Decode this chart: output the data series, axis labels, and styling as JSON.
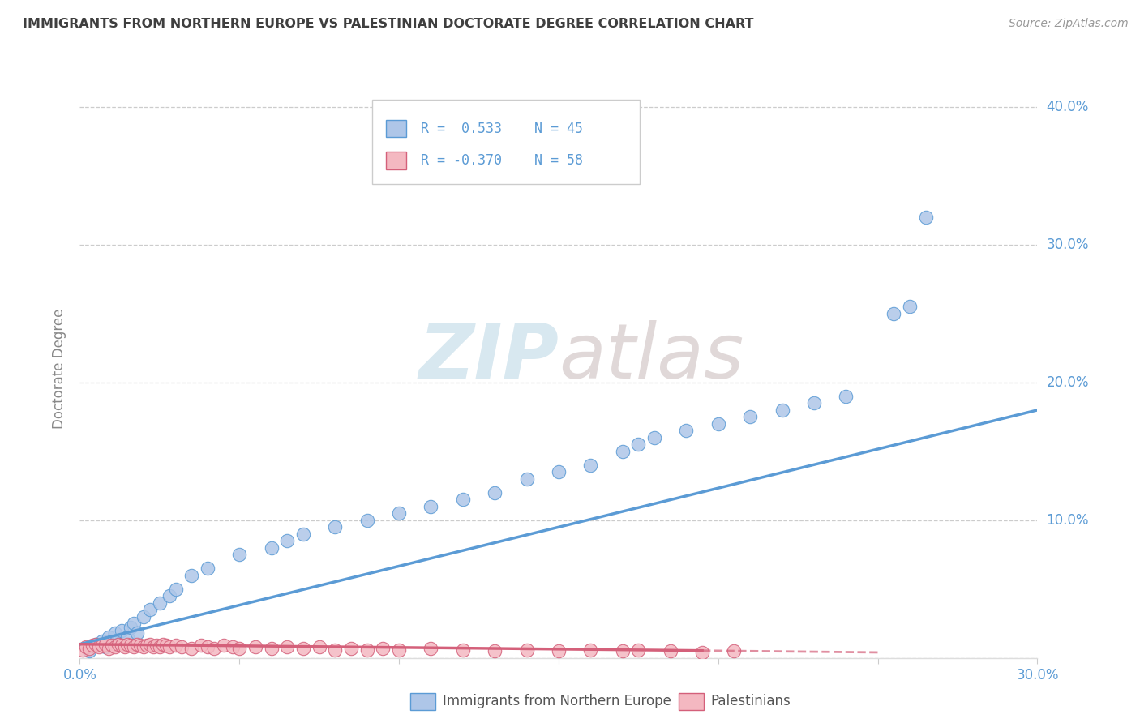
{
  "title": "IMMIGRANTS FROM NORTHERN EUROPE VS PALESTINIAN DOCTORATE DEGREE CORRELATION CHART",
  "source": "Source: ZipAtlas.com",
  "ylabel": "Doctorate Degree",
  "xlim": [
    0.0,
    0.3
  ],
  "ylim": [
    0.0,
    0.42
  ],
  "grid_color": "#cccccc",
  "background_color": "#ffffff",
  "series1_color": "#aec6e8",
  "series1_edge": "#5b9bd5",
  "series2_color": "#f4b8c1",
  "series2_edge": "#d4607a",
  "series1_label": "Immigrants from Northern Europe",
  "series2_label": "Palestinians",
  "title_color": "#3f3f3f",
  "axis_label_color": "#5b9bd5",
  "blue_x": [
    0.003,
    0.005,
    0.007,
    0.008,
    0.009,
    0.01,
    0.011,
    0.012,
    0.013,
    0.015,
    0.016,
    0.017,
    0.018,
    0.02,
    0.022,
    0.025,
    0.028,
    0.03,
    0.035,
    0.04,
    0.05,
    0.06,
    0.065,
    0.07,
    0.08,
    0.09,
    0.1,
    0.11,
    0.12,
    0.13,
    0.14,
    0.15,
    0.16,
    0.17,
    0.175,
    0.18,
    0.19,
    0.2,
    0.21,
    0.22,
    0.23,
    0.24,
    0.255,
    0.26,
    0.265
  ],
  "blue_y": [
    0.005,
    0.01,
    0.012,
    0.008,
    0.015,
    0.012,
    0.018,
    0.01,
    0.02,
    0.015,
    0.022,
    0.025,
    0.018,
    0.03,
    0.035,
    0.04,
    0.045,
    0.05,
    0.06,
    0.065,
    0.075,
    0.08,
    0.085,
    0.09,
    0.095,
    0.1,
    0.105,
    0.11,
    0.115,
    0.12,
    0.13,
    0.135,
    0.14,
    0.15,
    0.155,
    0.16,
    0.165,
    0.17,
    0.175,
    0.18,
    0.185,
    0.19,
    0.25,
    0.255,
    0.32
  ],
  "pink_x": [
    0.001,
    0.002,
    0.003,
    0.004,
    0.005,
    0.006,
    0.007,
    0.008,
    0.009,
    0.01,
    0.011,
    0.012,
    0.013,
    0.014,
    0.015,
    0.016,
    0.017,
    0.018,
    0.019,
    0.02,
    0.021,
    0.022,
    0.023,
    0.024,
    0.025,
    0.026,
    0.027,
    0.028,
    0.03,
    0.032,
    0.035,
    0.038,
    0.04,
    0.042,
    0.045,
    0.048,
    0.05,
    0.055,
    0.06,
    0.065,
    0.07,
    0.075,
    0.08,
    0.085,
    0.09,
    0.095,
    0.1,
    0.11,
    0.12,
    0.13,
    0.14,
    0.15,
    0.16,
    0.17,
    0.175,
    0.185,
    0.195,
    0.205
  ],
  "pink_y": [
    0.006,
    0.008,
    0.007,
    0.009,
    0.01,
    0.008,
    0.009,
    0.01,
    0.007,
    0.009,
    0.008,
    0.01,
    0.009,
    0.008,
    0.01,
    0.009,
    0.008,
    0.01,
    0.009,
    0.008,
    0.009,
    0.01,
    0.008,
    0.009,
    0.008,
    0.01,
    0.009,
    0.008,
    0.009,
    0.008,
    0.007,
    0.009,
    0.008,
    0.007,
    0.009,
    0.008,
    0.007,
    0.008,
    0.007,
    0.008,
    0.007,
    0.008,
    0.006,
    0.007,
    0.006,
    0.007,
    0.006,
    0.007,
    0.006,
    0.005,
    0.006,
    0.005,
    0.006,
    0.005,
    0.006,
    0.005,
    0.004,
    0.005
  ],
  "blue_trend_x": [
    0.0,
    0.3
  ],
  "blue_trend_y": [
    0.01,
    0.18
  ],
  "pink_trend_x0": 0.0,
  "pink_trend_x1_solid": 0.195,
  "pink_trend_x1_dash": 0.25,
  "pink_trend_y0": 0.01,
  "pink_trend_y1": 0.004
}
